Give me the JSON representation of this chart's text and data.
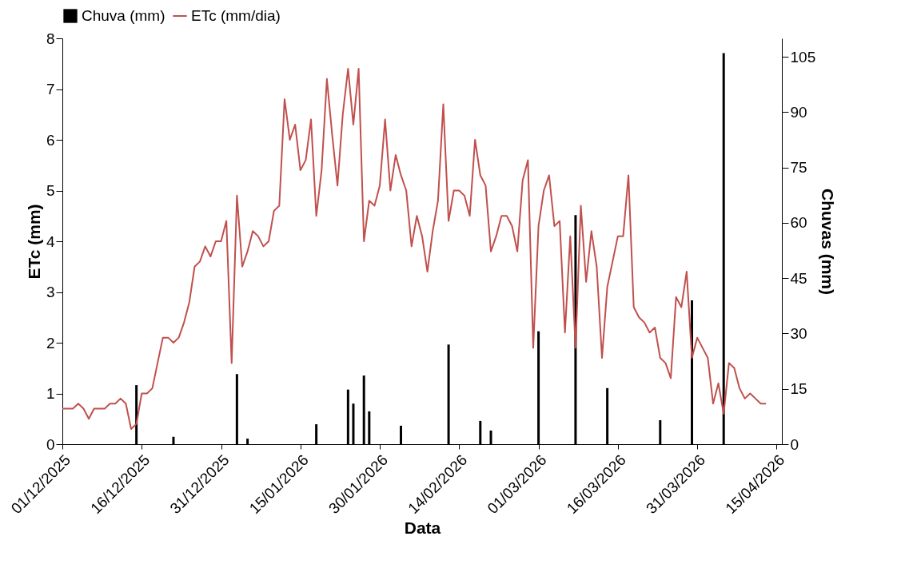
{
  "chart_data": {
    "type": "line",
    "xlabel": "Data",
    "ylabel": "ETc (mm)",
    "y2label": "Chuvas (mm)",
    "x": [
      "2025-12-01",
      "2025-12-02",
      "2025-12-03",
      "2025-12-04",
      "2025-12-05",
      "2025-12-06",
      "2025-12-07",
      "2025-12-08",
      "2025-12-09",
      "2025-12-10",
      "2025-12-11",
      "2025-12-12",
      "2025-12-13",
      "2025-12-14",
      "2025-12-15",
      "2025-12-16",
      "2025-12-17",
      "2025-12-18",
      "2025-12-19",
      "2025-12-20",
      "2025-12-21",
      "2025-12-22",
      "2025-12-23",
      "2025-12-24",
      "2025-12-25",
      "2025-12-26",
      "2025-12-27",
      "2025-12-28",
      "2025-12-29",
      "2025-12-30",
      "2025-12-31",
      "2026-01-01",
      "2026-01-02",
      "2026-01-03",
      "2026-01-04",
      "2026-01-05",
      "2026-01-06",
      "2026-01-07",
      "2026-01-08",
      "2026-01-09",
      "2026-01-10",
      "2026-01-11",
      "2026-01-12",
      "2026-01-13",
      "2026-01-14",
      "2026-01-15",
      "2026-01-16",
      "2026-01-17",
      "2026-01-18",
      "2026-01-19",
      "2026-01-20",
      "2026-01-21",
      "2026-01-22",
      "2026-01-23",
      "2026-01-24",
      "2026-01-25",
      "2026-01-26",
      "2026-01-27",
      "2026-01-28",
      "2026-01-29",
      "2026-01-30",
      "2026-01-31",
      "2026-02-01",
      "2026-02-02",
      "2026-02-03",
      "2026-02-04",
      "2026-02-05",
      "2026-02-06",
      "2026-02-07",
      "2026-02-08",
      "2026-02-09",
      "2026-02-10",
      "2026-02-11",
      "2026-02-12",
      "2026-02-13",
      "2026-02-14",
      "2026-02-15",
      "2026-02-16",
      "2026-02-17",
      "2026-02-18",
      "2026-02-19",
      "2026-02-20",
      "2026-02-21",
      "2026-02-22",
      "2026-02-23",
      "2026-02-24",
      "2026-02-25",
      "2026-02-26",
      "2026-02-27",
      "2026-02-28",
      "2026-03-01",
      "2026-03-02",
      "2026-03-03",
      "2026-03-04",
      "2026-03-05",
      "2026-03-06",
      "2026-03-07",
      "2026-03-08",
      "2026-03-09",
      "2026-03-10",
      "2026-03-11",
      "2026-03-12",
      "2026-03-13",
      "2026-03-14",
      "2026-03-15",
      "2026-03-16",
      "2026-03-17",
      "2026-03-18",
      "2026-03-19",
      "2026-03-20",
      "2026-03-21",
      "2026-03-22",
      "2026-03-23",
      "2026-03-24",
      "2026-03-25",
      "2026-03-26",
      "2026-03-27",
      "2026-03-28",
      "2026-03-29",
      "2026-03-30",
      "2026-03-31",
      "2026-04-01",
      "2026-04-02",
      "2026-04-03",
      "2026-04-04",
      "2026-04-05",
      "2026-04-06",
      "2026-04-07",
      "2026-04-08",
      "2026-04-09",
      "2026-04-10",
      "2026-04-11",
      "2026-04-12",
      "2026-04-13"
    ],
    "series": [
      {
        "name": "Chuva (mm)",
        "type": "bar",
        "axis": "y2",
        "color": "#000000",
        "x": [
          "2025-12-15",
          "2025-12-22",
          "2026-01-03",
          "2026-01-05",
          "2026-01-18",
          "2026-01-24",
          "2026-01-25",
          "2026-01-27",
          "2026-01-28",
          "2026-02-03",
          "2026-02-12",
          "2026-02-18",
          "2026-02-20",
          "2026-03-01",
          "2026-03-08",
          "2026-03-14",
          "2026-03-24",
          "2026-03-30",
          "2026-04-05"
        ],
        "values": [
          16,
          2,
          19,
          1.5,
          5.4,
          14.8,
          11.0,
          18.6,
          8.9,
          5.0,
          27.0,
          6.3,
          3.7,
          30.6,
          62.1,
          15.2,
          6.5,
          39.0,
          106
        ]
      },
      {
        "name": "ETc (mm/dia)",
        "color": "#c0504d",
        "values": [
          0.7,
          0.7,
          0.7,
          0.8,
          0.7,
          0.5,
          0.7,
          0.7,
          0.7,
          0.8,
          0.8,
          0.9,
          0.8,
          0.3,
          0.4,
          1.0,
          1.0,
          1.1,
          1.6,
          2.1,
          2.1,
          2.0,
          2.1,
          2.4,
          2.8,
          3.5,
          3.6,
          3.9,
          3.7,
          4.0,
          4.0,
          4.4,
          1.6,
          4.9,
          3.5,
          3.8,
          4.2,
          4.1,
          3.9,
          4.0,
          4.6,
          4.7,
          6.8,
          6.0,
          6.3,
          5.4,
          5.6,
          6.4,
          4.5,
          5.4,
          7.2,
          6.1,
          5.1,
          6.5,
          7.4,
          6.3,
          7.4,
          4.0,
          4.8,
          4.7,
          5.1,
          6.4,
          5.0,
          5.7,
          5.3,
          5.0,
          3.9,
          4.5,
          4.1,
          3.4,
          4.2,
          4.8,
          6.7,
          4.4,
          5.0,
          5.0,
          4.9,
          4.5,
          6.0,
          5.3,
          5.1,
          3.8,
          4.1,
          4.5,
          4.5,
          4.3,
          3.8,
          5.2,
          5.6,
          1.9,
          4.3,
          5.0,
          5.3,
          4.3,
          4.4,
          2.2,
          4.1,
          1.9,
          4.7,
          3.2,
          4.2,
          3.5,
          1.7,
          3.1,
          3.6,
          4.1,
          4.1,
          5.3,
          2.7,
          2.5,
          2.4,
          2.2,
          2.3,
          1.7,
          1.6,
          1.3,
          2.9,
          2.7,
          3.4,
          1.7,
          2.1,
          1.9,
          1.7,
          0.8,
          1.2,
          0.6,
          1.6,
          1.5,
          1.1,
          0.9,
          1.0,
          0.9,
          0.8,
          0.8
        ]
      }
    ],
    "xlim": [
      "2025-12-01",
      "2026-04-16"
    ],
    "xticks": [
      {
        "value": "2025-12-01",
        "label": "01/12/2025"
      },
      {
        "value": "2025-12-16",
        "label": "16/12/2025"
      },
      {
        "value": "2025-12-31",
        "label": "31/12/2025"
      },
      {
        "value": "2026-01-15",
        "label": "15/01/2026"
      },
      {
        "value": "2026-01-30",
        "label": "30/01/2026"
      },
      {
        "value": "2026-02-14",
        "label": "14/02/2026"
      },
      {
        "value": "2026-03-01",
        "label": "01/03/2026"
      },
      {
        "value": "2026-03-16",
        "label": "16/03/2026"
      },
      {
        "value": "2026-03-31",
        "label": "31/03/2026"
      },
      {
        "value": "2026-04-15",
        "label": "15/04/2026"
      }
    ],
    "ylim": [
      0,
      8
    ],
    "yticks": [
      0,
      1,
      2,
      3,
      4,
      5,
      6,
      7,
      8
    ],
    "y2lim": [
      0,
      110
    ],
    "y2ticks": [
      0,
      15,
      30,
      45,
      60,
      75,
      90,
      105
    ],
    "legend": "top",
    "grid": false,
    "marker": "none",
    "line_style": "solid"
  }
}
